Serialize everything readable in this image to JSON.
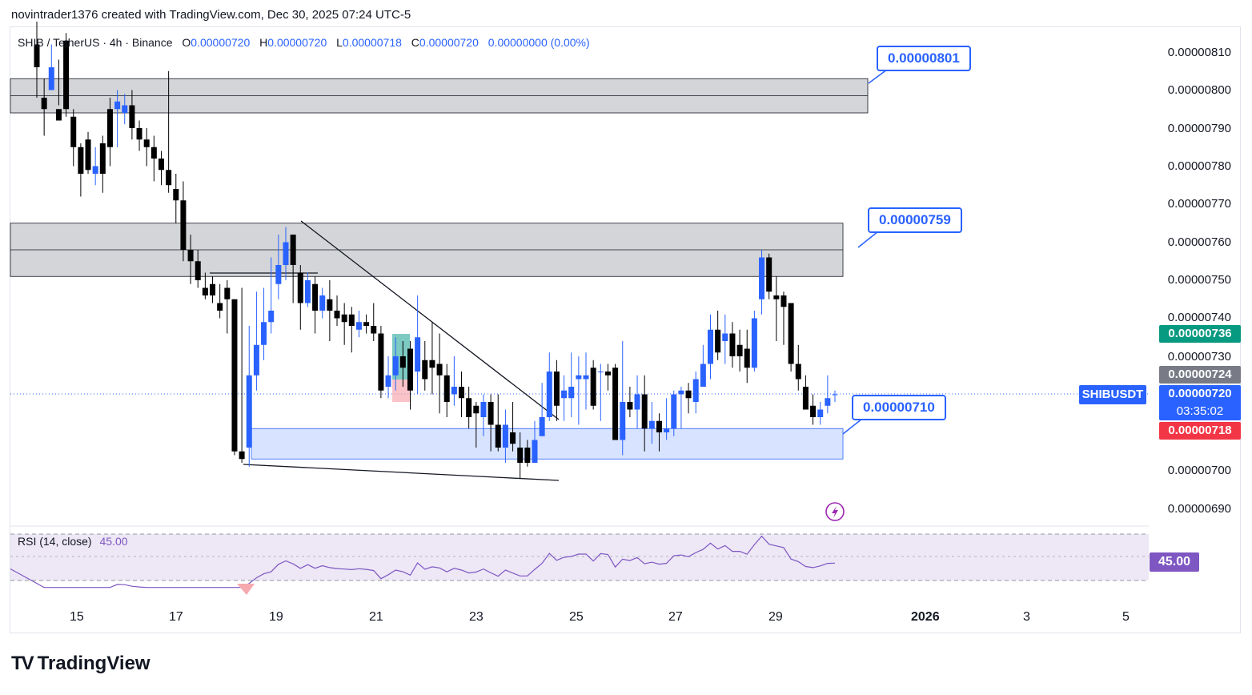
{
  "header": {
    "text": "novintrader1376 created with TradingView.com, Dec 30, 2025 07:24 UTC-5"
  },
  "legend": {
    "symbol": "SHIB / TetherUS · 4h · Binance",
    "o_label": "O",
    "o": "0.00000720",
    "h_label": "H",
    "h": "0.00000720",
    "l_label": "L",
    "l": "0.00000718",
    "c_label": "C",
    "c": "0.00000720",
    "change": "0.00000000 (0.00%)"
  },
  "price_axis": [
    "0.00000810",
    "0.00000800",
    "0.00000790",
    "0.00000780",
    "0.00000770",
    "0.00000760",
    "0.00000750",
    "0.00000740",
    "0.00000730",
    "0.00000700",
    "0.00000690"
  ],
  "tags": {
    "high": "0.00000736",
    "mid": "0.00000724",
    "symbol": "SHIBUSDT",
    "last": "0.00000720",
    "countdown": "03:35:02",
    "low": "0.00000718"
  },
  "callouts": [
    "0.00000801",
    "0.00000759",
    "0.00000710"
  ],
  "rsi": {
    "label": "RSI (14, close)",
    "value": "45.00"
  },
  "x_axis": [
    "15",
    "17",
    "19",
    "21",
    "23",
    "25",
    "27",
    "29",
    "2026",
    "3",
    "5"
  ],
  "footer": {
    "brand": "TradingView"
  },
  "colors": {
    "up": "#2962ff",
    "down": "#000000",
    "zone_gray": "#d1d4dc",
    "zone_blue": "#bbd0ff",
    "rsi_line": "#7e57c2",
    "rsi_band": "#ede7f6",
    "last_tag": "#2962ff",
    "low_tag": "#f23645",
    "high_tag": "#089981",
    "mid_tag": "#787b86"
  },
  "chart_data": {
    "type": "candlestick",
    "title": "SHIB / TetherUS · 4h · Binance",
    "x": [
      "15",
      "17",
      "19",
      "21",
      "23",
      "25",
      "27",
      "29",
      "2026",
      "3",
      "5"
    ],
    "ylim": [
      6.85e-06,
      8.15e-06
    ],
    "candles_ohlc": [
      [
        812,
        806,
        818,
        798
      ],
      [
        798,
        795,
        803,
        788
      ],
      [
        800,
        806,
        812,
        802
      ],
      [
        795,
        792,
        808,
        796
      ],
      [
        813,
        795,
        815,
        793
      ],
      [
        793,
        785,
        795,
        780
      ],
      [
        785,
        778,
        786,
        772
      ],
      [
        787,
        779,
        789,
        778
      ],
      [
        778,
        780,
        785,
        775
      ],
      [
        786,
        778,
        788,
        773
      ],
      [
        795,
        785,
        798,
        780
      ],
      [
        795,
        797,
        800,
        785
      ],
      [
        794,
        796,
        799,
        791
      ],
      [
        796,
        790,
        800,
        787
      ],
      [
        790,
        787,
        792,
        784
      ],
      [
        787,
        785,
        790,
        780
      ],
      [
        785,
        782,
        788,
        776
      ],
      [
        782,
        779,
        784,
        775
      ],
      [
        779,
        775,
        805,
        773
      ],
      [
        774,
        771,
        778,
        765
      ],
      [
        771,
        758,
        776,
        755
      ],
      [
        758,
        755,
        762,
        749
      ],
      [
        755,
        750,
        758,
        748
      ],
      [
        748,
        746,
        752,
        745
      ],
      [
        749,
        746,
        751,
        744
      ],
      [
        744,
        742,
        749,
        740
      ],
      [
        748,
        745,
        750,
        736
      ],
      [
        745,
        705,
        745,
        704
      ],
      [
        705,
        703,
        748,
        702
      ],
      [
        706,
        725,
        738,
        701
      ],
      [
        725,
        733,
        747,
        721
      ],
      [
        733,
        739,
        748,
        729
      ],
      [
        739,
        742,
        756,
        736
      ],
      [
        749,
        754,
        762,
        745
      ],
      [
        754,
        760,
        764,
        750
      ],
      [
        762,
        754,
        762,
        744
      ],
      [
        752,
        744,
        754,
        737
      ],
      [
        744,
        750,
        752,
        743
      ],
      [
        749,
        742,
        751,
        736
      ],
      [
        742,
        746,
        748,
        740
      ],
      [
        745,
        742,
        750,
        734
      ],
      [
        742,
        740,
        746,
        738
      ],
      [
        741,
        739,
        744,
        733
      ],
      [
        741,
        738,
        743,
        731
      ],
      [
        737,
        739,
        742,
        735
      ],
      [
        739,
        738,
        741,
        736
      ],
      [
        738,
        736,
        744,
        734
      ],
      [
        736,
        721,
        738,
        719
      ],
      [
        722,
        725,
        730,
        719
      ],
      [
        725,
        730,
        735,
        721
      ],
      [
        730,
        727,
        734,
        722
      ],
      [
        732,
        721,
        734,
        716
      ],
      [
        726,
        735,
        746,
        720
      ],
      [
        729,
        724,
        734,
        721
      ],
      [
        729,
        727,
        739,
        720
      ],
      [
        728,
        725,
        736,
        715
      ],
      [
        725,
        718,
        728,
        714
      ],
      [
        720,
        722,
        730,
        717
      ],
      [
        722,
        719,
        726,
        714
      ],
      [
        719,
        714,
        722,
        711
      ],
      [
        717,
        715,
        718,
        706
      ],
      [
        714,
        718,
        720,
        709
      ],
      [
        718,
        712,
        720,
        705
      ],
      [
        712,
        706,
        720,
        705
      ],
      [
        706,
        712,
        716,
        702
      ],
      [
        710,
        707,
        718,
        705
      ],
      [
        706,
        702,
        710,
        698
      ],
      [
        706,
        702,
        708,
        701
      ],
      [
        702,
        708,
        713,
        703
      ],
      [
        709,
        714,
        723,
        710
      ],
      [
        714,
        726,
        731,
        713
      ],
      [
        726,
        717,
        729,
        713
      ],
      [
        719,
        721,
        725,
        713
      ],
      [
        719,
        722,
        731,
        714
      ],
      [
        724,
        725,
        730,
        712
      ],
      [
        724,
        725,
        731,
        716
      ],
      [
        727,
        717,
        729,
        716
      ],
      [
        726,
        726,
        728,
        713
      ],
      [
        726,
        725,
        728,
        721
      ],
      [
        727,
        708,
        728,
        708
      ],
      [
        708,
        718,
        734,
        704
      ],
      [
        718,
        716,
        722,
        714
      ],
      [
        716,
        720,
        725,
        711
      ],
      [
        720,
        711,
        725,
        705
      ],
      [
        711,
        713,
        718,
        707
      ],
      [
        713,
        710,
        715,
        705
      ],
      [
        710,
        711,
        719,
        708
      ],
      [
        711,
        720,
        721,
        709
      ],
      [
        720,
        721,
        722,
        711
      ],
      [
        721,
        719,
        723,
        715
      ],
      [
        718,
        724,
        726,
        715
      ],
      [
        722,
        728,
        733,
        722
      ],
      [
        728,
        737,
        741,
        724
      ],
      [
        737,
        731,
        742,
        729
      ],
      [
        734,
        736,
        741,
        728
      ],
      [
        736,
        730,
        739,
        727
      ],
      [
        733,
        730,
        737,
        726
      ],
      [
        732,
        727,
        737,
        723
      ],
      [
        727,
        740,
        742,
        726
      ],
      [
        745,
        756,
        758,
        741
      ],
      [
        756,
        747,
        757,
        745
      ],
      [
        746,
        745,
        751,
        734
      ],
      [
        746,
        743,
        747,
        733
      ],
      [
        744,
        728,
        744,
        726
      ],
      [
        728,
        724,
        733,
        721
      ],
      [
        722,
        716,
        725,
        716
      ],
      [
        717,
        714,
        720,
        712
      ],
      [
        714,
        716,
        718,
        712
      ],
      [
        717,
        719,
        725,
        715
      ],
      [
        720,
        720,
        721,
        718
      ]
    ],
    "candles_scale": "values are price x 1e-8 (e.g. 720 = 0.00000720)",
    "zones": [
      {
        "from": 7.94e-06,
        "to": 8.03e-06,
        "color": "gray"
      },
      {
        "from": 7.51e-06,
        "to": 7.65e-06,
        "color": "gray"
      },
      {
        "from": 7.03e-06,
        "to": 7.11e-06,
        "color": "blue"
      }
    ],
    "rsi": {
      "label": "RSI (14, close)",
      "last": 45.0,
      "upper": 70,
      "lower": 30
    }
  }
}
